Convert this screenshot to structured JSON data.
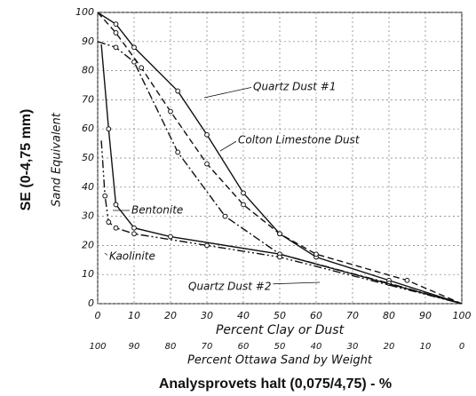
{
  "chart_data": {
    "type": "line",
    "ylabel": "SE (0-4,75 mm)",
    "ylabel2": "Sand Equivalent",
    "xlabel": "Percent Clay or Dust",
    "x2label": "Percent Ottawa Sand by Weight",
    "xlabel_bottom": "Analysprovets halt (0,075/4,75) - %",
    "xlim": [
      0,
      100
    ],
    "ylim": [
      0,
      100
    ],
    "x2lim": [
      100,
      0
    ],
    "xticks": [
      0,
      10,
      20,
      30,
      40,
      50,
      60,
      70,
      80,
      90,
      100
    ],
    "x2ticks": [
      100,
      90,
      80,
      70,
      60,
      50,
      40,
      30,
      20,
      10,
      0
    ],
    "yticks": [
      0,
      10,
      20,
      30,
      40,
      50,
      60,
      70,
      80,
      90,
      100
    ],
    "grid": true,
    "series": [
      {
        "name": "Quartz Dust #1",
        "color": "#111111",
        "dash": "solid",
        "x": [
          0,
          5,
          10,
          22,
          30,
          40,
          50,
          60,
          80,
          100
        ],
        "values": [
          100,
          96,
          88,
          73,
          58,
          38,
          24,
          16,
          8,
          0
        ]
      },
      {
        "name": "Colton Limestone Dust",
        "color": "#111111",
        "dash": "dashed",
        "x": [
          0,
          5,
          12,
          20,
          30,
          40,
          50,
          60,
          85,
          100
        ],
        "values": [
          100,
          93,
          81,
          66,
          48,
          34,
          24,
          17,
          8,
          0
        ]
      },
      {
        "name": "Quartz Dust #2",
        "color": "#111111",
        "dash": "dashdot",
        "x": [
          0,
          5,
          10,
          22,
          35,
          50,
          80,
          100
        ],
        "values": [
          90,
          88,
          83,
          52,
          30,
          17,
          7,
          0
        ]
      },
      {
        "name": "Bentonite",
        "color": "#111111",
        "dash": "solid",
        "x": [
          1,
          3,
          5,
          10,
          20,
          50,
          100
        ],
        "values": [
          89,
          60,
          34,
          26,
          23,
          17,
          0
        ]
      },
      {
        "name": "Kaolinite",
        "color": "#111111",
        "dash": "dashdotdot",
        "x": [
          1,
          2,
          3,
          5,
          10,
          30,
          50,
          100
        ],
        "values": [
          56,
          37,
          28,
          26,
          24,
          20,
          16,
          0
        ]
      }
    ]
  }
}
